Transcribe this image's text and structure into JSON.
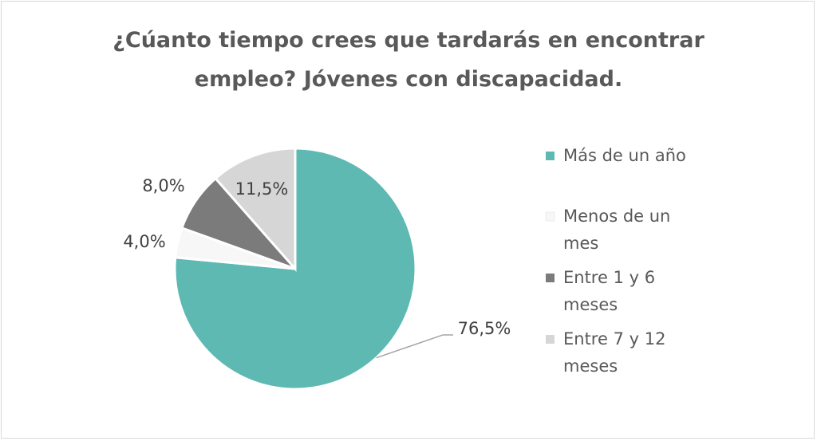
{
  "chart_data": {
    "type": "pie",
    "title_lines": [
      "¿Cúanto tiempo crees que tardarás en encontrar",
      "empleo? Jóvenes con discapacidad."
    ],
    "series": [
      {
        "name": "Más de un año",
        "value": 76.5,
        "label": "76,5%",
        "color": "#5eb9b3",
        "legend_lines": [
          "Más de un año"
        ]
      },
      {
        "name": "Menos de un mes",
        "value": 4.0,
        "label": "4,0%",
        "color": "#f7f7f7",
        "legend_lines": [
          "Menos de un",
          "mes"
        ]
      },
      {
        "name": "Entre 1 y 6 meses",
        "value": 8.0,
        "label": "8,0%",
        "color": "#7b7b7b",
        "legend_lines": [
          "Entre 1 y 6",
          "meses"
        ]
      },
      {
        "name": "Entre 7 y 12 meses",
        "value": 11.5,
        "label": "11,5%",
        "color": "#d6d6d6",
        "legend_lines": [
          "Entre 7 y 12",
          "meses"
        ]
      }
    ],
    "legend_position": "right"
  }
}
